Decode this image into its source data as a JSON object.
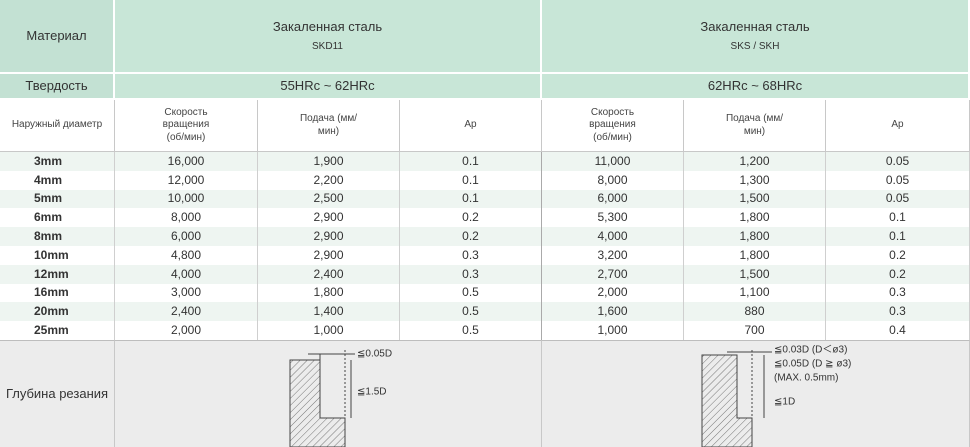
{
  "header": {
    "material_label": "Материал",
    "hardness_label": "Твердость",
    "diameter_label": "Наружный диаметр",
    "groups": [
      {
        "title": "Закаленная сталь",
        "grade": "SKD11",
        "hardness": "55HRc ~ 62HRc",
        "columns": [
          "Скорость вращения (об/мин)",
          "Подача (мм/мин)",
          "Ap"
        ]
      },
      {
        "title": "Закаленная сталь",
        "grade": "SKS / SKH",
        "hardness": "62HRc ~ 68HRc",
        "columns": [
          "Скорость вращения (об/мин)",
          "Подача (мм/мин)",
          "Ap"
        ]
      }
    ]
  },
  "table": {
    "rows": [
      [
        "3mm",
        "16,000",
        "1,900",
        "0.1",
        "11,000",
        "1,200",
        "0.05"
      ],
      [
        "4mm",
        "12,000",
        "2,200",
        "0.1",
        "8,000",
        "1,300",
        "0.05"
      ],
      [
        "5mm",
        "10,000",
        "2,500",
        "0.1",
        "6,000",
        "1,500",
        "0.05"
      ],
      [
        "6mm",
        "8,000",
        "2,900",
        "0.2",
        "5,300",
        "1,800",
        "0.1"
      ],
      [
        "8mm",
        "6,000",
        "2,900",
        "0.2",
        "4,000",
        "1,800",
        "0.1"
      ],
      [
        "10mm",
        "4,800",
        "2,900",
        "0.3",
        "3,200",
        "1,800",
        "0.2"
      ],
      [
        "12mm",
        "4,000",
        "2,400",
        "0.3",
        "2,700",
        "1,500",
        "0.2"
      ],
      [
        "16mm",
        "3,000",
        "1,800",
        "0.5",
        "2,000",
        "1,100",
        "0.3"
      ],
      [
        "20mm",
        "2,400",
        "1,400",
        "0.5",
        "1,600",
        "880",
        "0.3"
      ],
      [
        "25mm",
        "2,000",
        "1,000",
        "0.5",
        "1,000",
        "700",
        "0.4"
      ]
    ]
  },
  "depth": {
    "label": "Глубина резания",
    "left": [
      "≦0.05D",
      "≦1.5D"
    ],
    "right": [
      "≦0.03D (D＜ø3)",
      "≦0.05D (D ≧ ø3)",
      "(MAX. 0.5mm)",
      "≦1D"
    ]
  }
}
